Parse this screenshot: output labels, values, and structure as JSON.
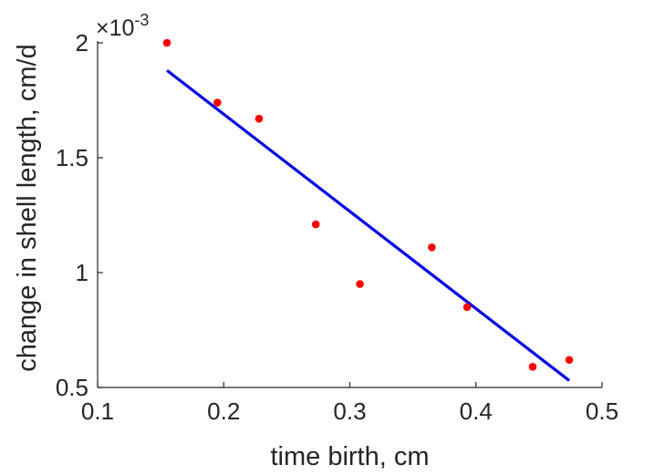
{
  "chart_data": {
    "type": "scatter",
    "title": "",
    "xlabel": "time birth, cm",
    "ylabel": "change in shell length, cm/d",
    "xlim": [
      0.1,
      0.5
    ],
    "ylim": [
      0.0005,
      0.002
    ],
    "xticks": [
      0.1,
      0.2,
      0.3,
      0.4,
      0.5
    ],
    "xtick_labels": [
      "0.1",
      "0.2",
      "0.3",
      "0.4",
      "0.5"
    ],
    "yticks": [
      0.0005,
      0.001,
      0.0015,
      0.002
    ],
    "ytick_labels": [
      "0.5",
      "1",
      "1.5",
      "2"
    ],
    "y_exponent_base": "×10",
    "y_exponent_power": "-3",
    "grid": false,
    "legend": false,
    "series": [
      {
        "kind": "scatter",
        "color": "#ff0000",
        "x": [
          0.155,
          0.195,
          0.228,
          0.273,
          0.308,
          0.365,
          0.393,
          0.445,
          0.474
        ],
        "y": [
          0.002,
          0.00174,
          0.00167,
          0.00121,
          0.00095,
          0.00111,
          0.00085,
          0.00059,
          0.00062
        ]
      },
      {
        "kind": "line",
        "color": "#0000e6",
        "x": [
          0.155,
          0.474
        ],
        "y": [
          0.00188,
          0.00053
        ]
      }
    ]
  }
}
